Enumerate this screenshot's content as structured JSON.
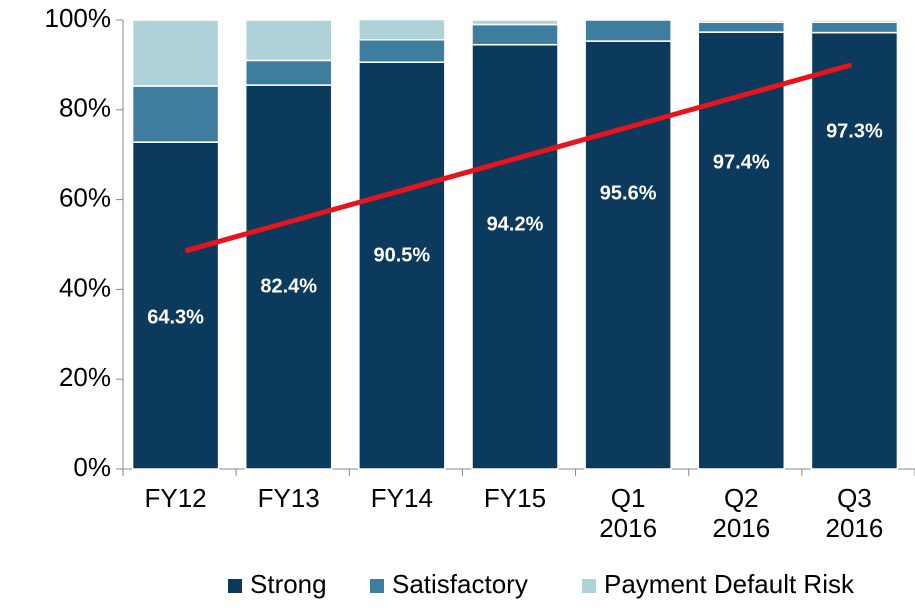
{
  "chart_data": {
    "type": "stacked_bar",
    "categories": [
      "FY12",
      "FY13",
      "FY14",
      "FY15",
      "Q1 2016",
      "Q2 2016",
      "Q3 2016"
    ],
    "series": [
      {
        "name": "Strong",
        "color": "#0b3a5d",
        "values": [
          72.8,
          85.5,
          90.6,
          94.5,
          95.3,
          97.3,
          97.2
        ]
      },
      {
        "name": "Satisfactory",
        "color": "#3f7d9f",
        "values": [
          12.5,
          5.5,
          5,
          4.5,
          4.7,
          2.2,
          2.3
        ]
      },
      {
        "name": "Payment Default Risk",
        "color": "#aed2d8",
        "values": [
          14.7,
          9,
          4.5,
          1,
          0,
          0.5,
          0.5
        ]
      }
    ],
    "annotations": [
      "64.3%",
      "82.4%",
      "90.5%",
      "94.2%",
      "95.6%",
      "97.4%",
      "97.3%"
    ],
    "trend_line": {
      "color": "#e8141c",
      "start": 48.6,
      "end": 90
    },
    "ylim": [
      0,
      100
    ],
    "yticks": [
      {
        "value": 0,
        "label": "0%"
      },
      {
        "value": 20,
        "label": "20%"
      },
      {
        "value": 40,
        "label": "40%"
      },
      {
        "value": 60,
        "label": "60%"
      },
      {
        "value": 80,
        "label": "80%"
      },
      {
        "value": 100,
        "label": "100%"
      }
    ],
    "legend": "bottom"
  }
}
